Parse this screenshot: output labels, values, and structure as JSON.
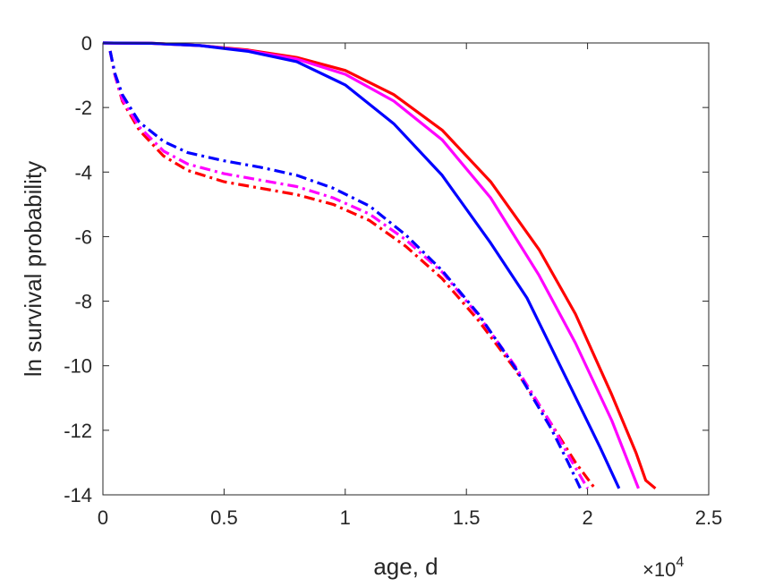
{
  "chart_data": {
    "type": "line",
    "xlabel": "age, d",
    "ylabel": "ln survival probability",
    "x_exponent_label": "×10",
    "x_exponent_power": "4",
    "xlim": [
      0,
      25000
    ],
    "ylim": [
      -14,
      0
    ],
    "xticks": [
      0,
      5000,
      10000,
      15000,
      20000,
      25000
    ],
    "xtick_labels": [
      "0",
      "0.5",
      "1",
      "1.5",
      "2",
      "2.5"
    ],
    "yticks": [
      0,
      -2,
      -4,
      -6,
      -8,
      -10,
      -12,
      -14
    ],
    "ytick_labels": [
      "0",
      "-2",
      "-4",
      "-6",
      "-8",
      "-10",
      "-12",
      "-14"
    ],
    "grid": false,
    "box": true,
    "series": [
      {
        "color": "#ff0000",
        "style": "solid",
        "points": [
          [
            0,
            0
          ],
          [
            2000,
            -0.01
          ],
          [
            4000,
            -0.08
          ],
          [
            6000,
            -0.22
          ],
          [
            8000,
            -0.45
          ],
          [
            10000,
            -0.85
          ],
          [
            12000,
            -1.6
          ],
          [
            14000,
            -2.7
          ],
          [
            16000,
            -4.3
          ],
          [
            18000,
            -6.4
          ],
          [
            19500,
            -8.4
          ],
          [
            21000,
            -10.9
          ],
          [
            22000,
            -12.7
          ],
          [
            22400,
            -13.55
          ],
          [
            22800,
            -13.8
          ]
        ]
      },
      {
        "color": "#ff00ff",
        "style": "solid",
        "points": [
          [
            0,
            0
          ],
          [
            2000,
            -0.01
          ],
          [
            4000,
            -0.08
          ],
          [
            6000,
            -0.24
          ],
          [
            8000,
            -0.5
          ],
          [
            10000,
            -0.97
          ],
          [
            12000,
            -1.8
          ],
          [
            14000,
            -3.0
          ],
          [
            16000,
            -4.8
          ],
          [
            18000,
            -7.2
          ],
          [
            19500,
            -9.3
          ],
          [
            21000,
            -11.7
          ],
          [
            22100,
            -13.8
          ]
        ]
      },
      {
        "color": "#0000ff",
        "style": "solid",
        "points": [
          [
            0,
            0
          ],
          [
            2000,
            -0.01
          ],
          [
            4000,
            -0.08
          ],
          [
            6000,
            -0.26
          ],
          [
            8000,
            -0.58
          ],
          [
            10000,
            -1.3
          ],
          [
            12000,
            -2.5
          ],
          [
            14000,
            -4.1
          ],
          [
            16000,
            -6.2
          ],
          [
            17500,
            -7.9
          ],
          [
            19000,
            -10.2
          ],
          [
            20500,
            -12.5
          ],
          [
            21300,
            -13.8
          ]
        ]
      },
      {
        "color": "#ff0000",
        "style": "dashdot",
        "points": [
          [
            300,
            -0.25
          ],
          [
            500,
            -1.0
          ],
          [
            800,
            -1.8
          ],
          [
            1500,
            -2.7
          ],
          [
            2500,
            -3.5
          ],
          [
            3500,
            -3.95
          ],
          [
            5000,
            -4.3
          ],
          [
            6500,
            -4.5
          ],
          [
            8000,
            -4.7
          ],
          [
            9500,
            -5.0
          ],
          [
            11000,
            -5.5
          ],
          [
            12500,
            -6.3
          ],
          [
            14000,
            -7.3
          ],
          [
            15500,
            -8.6
          ],
          [
            17000,
            -10.1
          ],
          [
            18500,
            -11.8
          ],
          [
            19500,
            -13.0
          ],
          [
            20300,
            -13.8
          ]
        ]
      },
      {
        "color": "#ff00ff",
        "style": "dashdot",
        "points": [
          [
            300,
            -0.25
          ],
          [
            500,
            -1.0
          ],
          [
            800,
            -1.75
          ],
          [
            1500,
            -2.6
          ],
          [
            2500,
            -3.35
          ],
          [
            3500,
            -3.75
          ],
          [
            5000,
            -4.05
          ],
          [
            6500,
            -4.25
          ],
          [
            8000,
            -4.45
          ],
          [
            9500,
            -4.8
          ],
          [
            11000,
            -5.3
          ],
          [
            12500,
            -6.1
          ],
          [
            14000,
            -7.1
          ],
          [
            15500,
            -8.45
          ],
          [
            17000,
            -10.0
          ],
          [
            18500,
            -11.8
          ],
          [
            19300,
            -12.9
          ],
          [
            20000,
            -13.8
          ]
        ]
      },
      {
        "color": "#0000ff",
        "style": "dashdot",
        "points": [
          [
            300,
            -0.25
          ],
          [
            500,
            -0.95
          ],
          [
            800,
            -1.6
          ],
          [
            1500,
            -2.45
          ],
          [
            2500,
            -3.05
          ],
          [
            3500,
            -3.4
          ],
          [
            5000,
            -3.65
          ],
          [
            6500,
            -3.85
          ],
          [
            8000,
            -4.1
          ],
          [
            9500,
            -4.5
          ],
          [
            11000,
            -5.05
          ],
          [
            12500,
            -5.95
          ],
          [
            14000,
            -7.05
          ],
          [
            15500,
            -8.4
          ],
          [
            17000,
            -10.05
          ],
          [
            18500,
            -11.95
          ],
          [
            19200,
            -13.0
          ],
          [
            19700,
            -13.8
          ]
        ]
      }
    ]
  }
}
